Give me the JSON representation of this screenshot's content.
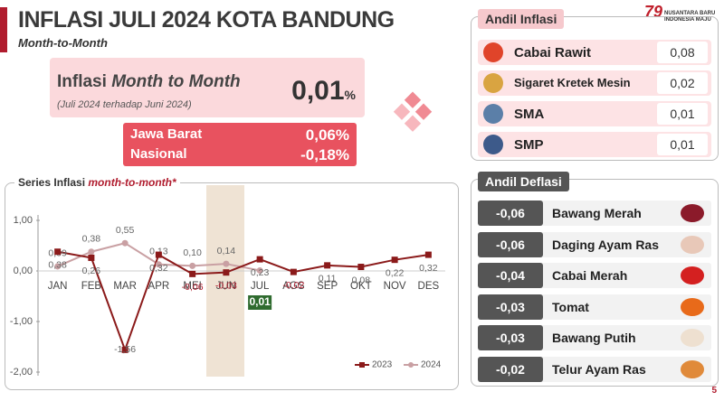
{
  "header": {
    "title": "INFLASI JULI 2024 KOTA BANDUNG",
    "subtitle": "Month-to-Month",
    "logo_text": [
      "NUSANTARA BARU",
      "INDONESIA MAJU"
    ]
  },
  "summary": {
    "label": "Inflasi ",
    "label_italic": "Month to Month",
    "value": "0,01",
    "unit": "%",
    "note": "(Juli 2024 terhadap Juni 2024)",
    "comparisons": [
      {
        "region": "Jawa Barat",
        "value": "0,06%"
      },
      {
        "region": "Nasional",
        "value": "-0,18%"
      }
    ]
  },
  "andil_inflasi": {
    "title": "Andil Inflasi",
    "items": [
      {
        "name": "Cabai Rawit",
        "value": "0,08"
      },
      {
        "name": "Sigaret Kretek Mesin",
        "value": "0,02"
      },
      {
        "name": "SMA",
        "value": "0,01"
      },
      {
        "name": "SMP",
        "value": "0,01"
      }
    ]
  },
  "andil_deflasi": {
    "title": "Andil Deflasi",
    "items": [
      {
        "name": "Bawang Merah",
        "value": "-0,06"
      },
      {
        "name": "Daging Ayam Ras",
        "value": "-0,06"
      },
      {
        "name": "Cabai Merah",
        "value": "-0,04"
      },
      {
        "name": "Tomat",
        "value": "-0,03"
      },
      {
        "name": "Bawang Putih",
        "value": "-0,03"
      },
      {
        "name": "Telur Ayam Ras",
        "value": "-0,02"
      }
    ]
  },
  "page_number": "5",
  "chart_data": {
    "type": "line",
    "title": "Series Inflasi ",
    "title_italic": "month-to-month*",
    "categories": [
      "JAN",
      "FEB",
      "MAR",
      "APR",
      "MEI",
      "JUN",
      "JUL",
      "AGS",
      "SEP",
      "OKT",
      "NOV",
      "DES"
    ],
    "ylim": [
      -2,
      1
    ],
    "yticks": [
      {
        "value": 1,
        "label": "1,00"
      },
      {
        "value": 0,
        "label": "0,00"
      },
      {
        "value": -1,
        "label": "-1,00"
      },
      {
        "value": -2,
        "label": "-2,00"
      }
    ],
    "legend": "lower right",
    "series": [
      {
        "name": "2023",
        "color": "#8b1a1a",
        "values": [
          0.38,
          0.26,
          -1.56,
          0.32,
          -0.06,
          -0.03,
          0.23,
          -0.02,
          0.11,
          0.08,
          0.22,
          0.32
        ],
        "value_labels": [
          "0,38",
          "0,26",
          "-1,56",
          "0,32",
          "-0,06",
          "-0,03",
          "0,23",
          "-0,02",
          "0,11",
          "0,08",
          "0,22",
          "0,32"
        ]
      },
      {
        "name": "2024",
        "color": "#c9a0a3",
        "values": [
          0.09,
          0.38,
          0.55,
          0.13,
          0.1,
          0.14,
          0.01,
          null,
          null,
          null,
          null,
          null
        ],
        "value_labels": [
          "0,09",
          "0,38",
          "0,55",
          "0,13",
          "0,10",
          "0,14",
          "0,01",
          null,
          null,
          null,
          null,
          null
        ]
      }
    ]
  }
}
